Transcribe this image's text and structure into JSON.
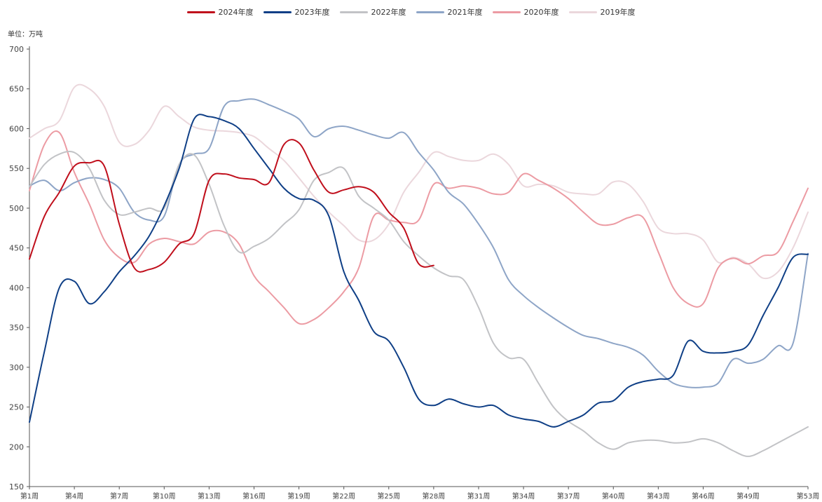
{
  "chart_data": {
    "type": "line",
    "unit_label": "单位：万吨",
    "ylim": [
      150,
      700
    ],
    "yticks": [
      150,
      200,
      250,
      300,
      350,
      400,
      450,
      500,
      550,
      600,
      650,
      700
    ],
    "xlim": [
      1,
      53
    ],
    "xticks": [
      1,
      4,
      7,
      10,
      13,
      16,
      19,
      22,
      25,
      28,
      31,
      34,
      37,
      40,
      43,
      46,
      49,
      53
    ],
    "xtick_labels": [
      "第1周",
      "第4周",
      "第7周",
      "第10周",
      "第13周",
      "第16周",
      "第19周",
      "第22周",
      "第25周",
      "第28周",
      "第31周",
      "第34周",
      "第37周",
      "第40周",
      "第43周",
      "第46周",
      "第49周",
      "第53周"
    ],
    "grid": false,
    "legend_position": "top-center",
    "series": [
      {
        "name": "2024年度",
        "color": "#c00f1c",
        "x": [
          1,
          2,
          3,
          4,
          5,
          6,
          7,
          8,
          9,
          10,
          11,
          12,
          13,
          14,
          15,
          16,
          17,
          18,
          19,
          20,
          21,
          22,
          23,
          24,
          25,
          26,
          27,
          28
        ],
        "values": [
          436,
          490,
          520,
          553,
          557,
          553,
          480,
          425,
          423,
          432,
          455,
          468,
          535,
          543,
          538,
          536,
          532,
          580,
          582,
          548,
          520,
          523,
          527,
          520,
          495,
          475,
          430,
          428
        ]
      },
      {
        "name": "2023年度",
        "color": "#0f3f86",
        "x": [
          1,
          2,
          3,
          4,
          5,
          6,
          7,
          8,
          9,
          10,
          11,
          12,
          13,
          14,
          15,
          16,
          17,
          18,
          19,
          20,
          21,
          22,
          23,
          24,
          25,
          26,
          27,
          28,
          29,
          30,
          31,
          32,
          33,
          34,
          35,
          36,
          37,
          38,
          39,
          40,
          41,
          42,
          43,
          44,
          45,
          46,
          47,
          48,
          49,
          50,
          51,
          52,
          53
        ],
        "values": [
          231,
          320,
          400,
          408,
          380,
          395,
          420,
          440,
          465,
          503,
          550,
          612,
          615,
          610,
          600,
          575,
          550,
          525,
          512,
          510,
          490,
          420,
          384,
          345,
          333,
          300,
          260,
          252,
          260,
          254,
          250,
          252,
          240,
          235,
          232,
          225,
          232,
          240,
          255,
          258,
          275,
          282,
          285,
          290,
          333,
          320,
          318,
          320,
          328,
          365,
          400,
          438,
          442
        ]
      },
      {
        "name": "2022年度",
        "color": "#c2c3c6",
        "x": [
          1,
          2,
          3,
          4,
          5,
          6,
          7,
          8,
          9,
          10,
          11,
          12,
          13,
          14,
          15,
          16,
          17,
          18,
          19,
          20,
          21,
          22,
          23,
          24,
          25,
          26,
          27,
          28,
          29,
          30,
          31,
          32,
          33,
          34,
          35,
          36,
          37,
          38,
          39,
          40,
          41,
          42,
          43,
          44,
          45,
          46,
          47,
          48,
          49,
          50,
          51,
          52,
          53
        ],
        "values": [
          527,
          555,
          568,
          570,
          550,
          510,
          492,
          495,
          500,
          500,
          555,
          567,
          530,
          478,
          445,
          452,
          462,
          480,
          498,
          535,
          545,
          550,
          515,
          500,
          485,
          458,
          440,
          425,
          415,
          410,
          375,
          330,
          312,
          310,
          280,
          250,
          232,
          220,
          205,
          197,
          205,
          208,
          208,
          205,
          206,
          210,
          205,
          195,
          188,
          195,
          205,
          215,
          225
        ]
      },
      {
        "name": "2021年度",
        "color": "#8ea5c7",
        "x": [
          1,
          2,
          3,
          4,
          5,
          6,
          7,
          8,
          9,
          10,
          11,
          12,
          13,
          14,
          15,
          16,
          17,
          18,
          19,
          20,
          21,
          22,
          23,
          24,
          25,
          26,
          27,
          28,
          29,
          30,
          31,
          32,
          33,
          34,
          35,
          36,
          37,
          38,
          39,
          40,
          41,
          42,
          43,
          44,
          45,
          46,
          47,
          48,
          49,
          50,
          51,
          52,
          53
        ],
        "values": [
          528,
          535,
          522,
          532,
          538,
          536,
          525,
          495,
          485,
          490,
          555,
          568,
          575,
          628,
          635,
          637,
          630,
          622,
          612,
          590,
          600,
          603,
          598,
          592,
          588,
          595,
          570,
          548,
          520,
          505,
          480,
          450,
          410,
          390,
          375,
          362,
          350,
          340,
          336,
          330,
          325,
          315,
          295,
          280,
          275,
          275,
          280,
          310,
          305,
          310,
          327,
          330,
          443
        ]
      },
      {
        "name": "2020年度",
        "color": "#ec9ba3",
        "x": [
          1,
          2,
          3,
          4,
          5,
          6,
          7,
          8,
          9,
          10,
          11,
          12,
          13,
          14,
          15,
          16,
          17,
          18,
          19,
          20,
          21,
          22,
          23,
          24,
          25,
          26,
          27,
          28,
          29,
          30,
          31,
          32,
          33,
          34,
          35,
          36,
          37,
          38,
          39,
          40,
          41,
          42,
          43,
          44,
          45,
          46,
          47,
          48,
          49,
          50,
          51,
          52,
          53
        ],
        "values": [
          522,
          580,
          595,
          545,
          505,
          460,
          438,
          432,
          455,
          462,
          458,
          455,
          470,
          470,
          455,
          415,
          395,
          375,
          355,
          360,
          375,
          395,
          425,
          490,
          485,
          482,
          485,
          530,
          525,
          528,
          525,
          518,
          520,
          543,
          535,
          525,
          512,
          495,
          480,
          480,
          488,
          488,
          445,
          400,
          380,
          380,
          425,
          437,
          430,
          440,
          445,
          483,
          525
        ]
      },
      {
        "name": "2019年度",
        "color": "#ebd7dc",
        "x": [
          1,
          2,
          3,
          4,
          5,
          6,
          7,
          8,
          9,
          10,
          11,
          12,
          13,
          14,
          15,
          16,
          17,
          18,
          19,
          20,
          21,
          22,
          23,
          24,
          25,
          26,
          27,
          28,
          29,
          30,
          31,
          32,
          33,
          34,
          35,
          36,
          37,
          38,
          39,
          40,
          41,
          42,
          43,
          44,
          45,
          46,
          47,
          48,
          49,
          50,
          51,
          52,
          53
        ],
        "values": [
          588,
          600,
          610,
          652,
          650,
          628,
          583,
          580,
          598,
          628,
          615,
          602,
          598,
          597,
          595,
          590,
          575,
          560,
          538,
          515,
          495,
          478,
          460,
          460,
          480,
          520,
          545,
          570,
          565,
          560,
          560,
          568,
          555,
          528,
          530,
          528,
          520,
          518,
          518,
          533,
          530,
          508,
          475,
          468,
          468,
          460,
          432,
          438,
          430,
          412,
          420,
          450,
          495
        ]
      }
    ]
  }
}
